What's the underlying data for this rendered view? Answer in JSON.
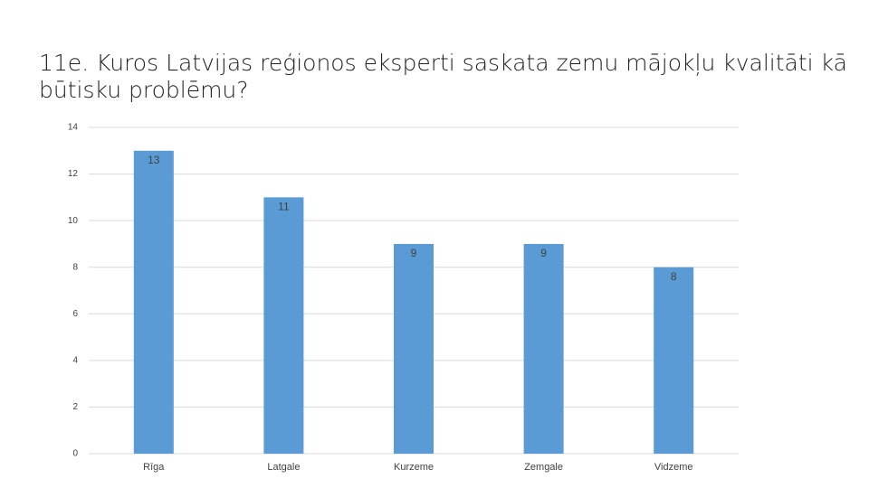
{
  "chart_data": {
    "type": "bar",
    "title": "11e. Kuros Latvijas reģionos eksperti saskata zemu mājokļu kvalitāti kā būtisku problēmu?",
    "categories": [
      "Rīga",
      "Latgale",
      "Kurzeme",
      "Zemgale",
      "Vidzeme"
    ],
    "values": [
      13,
      11,
      9,
      9,
      8
    ],
    "color": "#5b9bd5",
    "ylim": [
      0,
      14
    ],
    "yticks": [
      0,
      2,
      4,
      6,
      8,
      10,
      12,
      14
    ],
    "grid": true
  }
}
